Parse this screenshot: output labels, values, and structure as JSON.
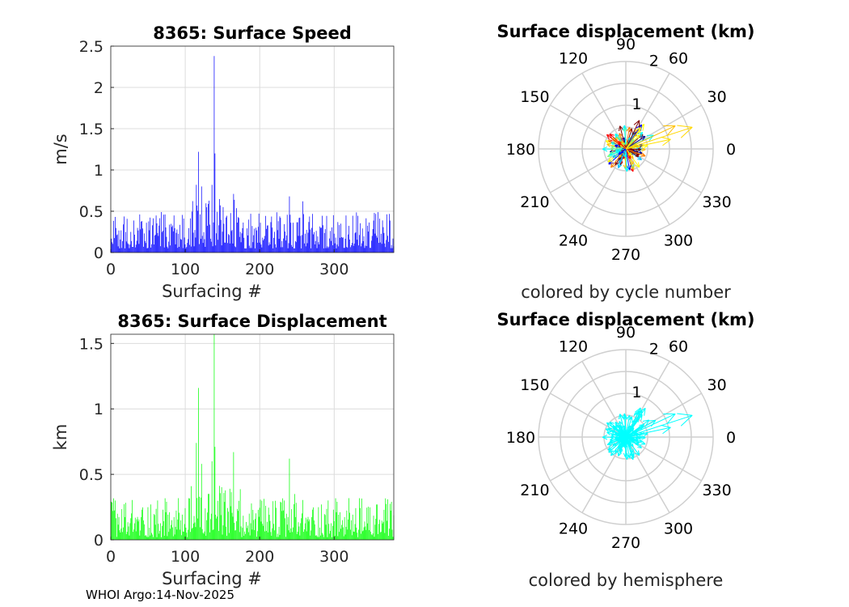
{
  "figure": {
    "footer": "WHOI Argo:14-Nov-2025",
    "colors": {
      "speed_bar": "#0000ff",
      "disp_bar": "#00ff00",
      "grid": "#dcdcdc",
      "polar_grid": "#cfcfcf"
    }
  },
  "chart_data": [
    {
      "id": "speed",
      "type": "bar",
      "title": "8365: Surface Speed",
      "xlabel": "Surfacing #",
      "ylabel": "m/s",
      "xlim": [
        0,
        380
      ],
      "ylim": [
        0,
        2.5
      ],
      "xticks": [
        0,
        100,
        200,
        300
      ],
      "yticks": [
        0,
        0.5,
        1,
        1.5,
        2,
        2.5
      ],
      "ytick_labels": [
        "0",
        "0.5",
        "1",
        "1.5",
        "2",
        "2.5"
      ],
      "peaks": [
        {
          "x": 115,
          "y": 0.82
        },
        {
          "x": 118,
          "y": 1.22
        },
        {
          "x": 122,
          "y": 0.8
        },
        {
          "x": 136,
          "y": 0.82
        },
        {
          "x": 139,
          "y": 2.38
        },
        {
          "x": 140,
          "y": 1.2
        },
        {
          "x": 165,
          "y": 0.71
        },
        {
          "x": 240,
          "y": 0.68
        },
        {
          "x": 258,
          "y": 0.62
        }
      ],
      "baseline_range": [
        0.05,
        0.5
      ]
    },
    {
      "id": "displacement",
      "type": "bar",
      "title": "8365: Surface Displacement",
      "xlabel": "Surfacing #",
      "ylabel": "km",
      "xlim": [
        0,
        380
      ],
      "ylim": [
        0,
        1.57
      ],
      "xticks": [
        0,
        100,
        200,
        300
      ],
      "yticks": [
        0,
        0.5,
        1,
        1.5
      ],
      "ytick_labels": [
        "0",
        "0.5",
        "1",
        "1.5"
      ],
      "peaks": [
        {
          "x": 115,
          "y": 0.74
        },
        {
          "x": 118,
          "y": 1.16
        },
        {
          "x": 122,
          "y": 0.58
        },
        {
          "x": 136,
          "y": 0.6
        },
        {
          "x": 139,
          "y": 1.57
        },
        {
          "x": 140,
          "y": 0.71
        },
        {
          "x": 165,
          "y": 0.67
        },
        {
          "x": 240,
          "y": 0.62
        },
        {
          "x": 247,
          "y": 0.35
        }
      ],
      "baseline_range": [
        0.02,
        0.32
      ]
    },
    {
      "id": "polar_cycle",
      "type": "polar_quiver",
      "title": "Surface displacement (km)",
      "caption": "colored by cycle number",
      "rlim": [
        0,
        2
      ],
      "ring_labels": [
        "1",
        "2"
      ],
      "angle_labels": [
        "0",
        "30",
        "60",
        "90",
        "120",
        "150",
        "180",
        "210",
        "240",
        "270",
        "300",
        "330"
      ],
      "palette": [
        "#00008f",
        "#0000ff",
        "#00bfff",
        "#00ffff",
        "#7fff7f",
        "#ffff00",
        "#ffbf00",
        "#ff8000",
        "#ff0000",
        "#800000"
      ],
      "long_arrows": [
        {
          "angle": 18,
          "r": 1.6,
          "color": "#ffd700"
        },
        {
          "angle": 25,
          "r": 1.25,
          "color": "#ffc000"
        },
        {
          "angle": 12,
          "r": 1.05,
          "color": "#ffe000"
        }
      ]
    },
    {
      "id": "polar_hemisphere",
      "type": "polar_quiver",
      "title": "Surface displacement (km)",
      "caption": "colored by hemisphere",
      "rlim": [
        0,
        2
      ],
      "ring_labels": [
        "1",
        "2"
      ],
      "angle_labels": [
        "0",
        "30",
        "60",
        "90",
        "120",
        "150",
        "180",
        "210",
        "240",
        "270",
        "300",
        "330"
      ],
      "palette": [
        "#00ffff"
      ],
      "long_arrows": [
        {
          "angle": 18,
          "r": 1.6,
          "color": "#00ffff"
        },
        {
          "angle": 25,
          "r": 1.25,
          "color": "#00ffff"
        },
        {
          "angle": 12,
          "r": 1.05,
          "color": "#00ffff"
        }
      ]
    }
  ]
}
